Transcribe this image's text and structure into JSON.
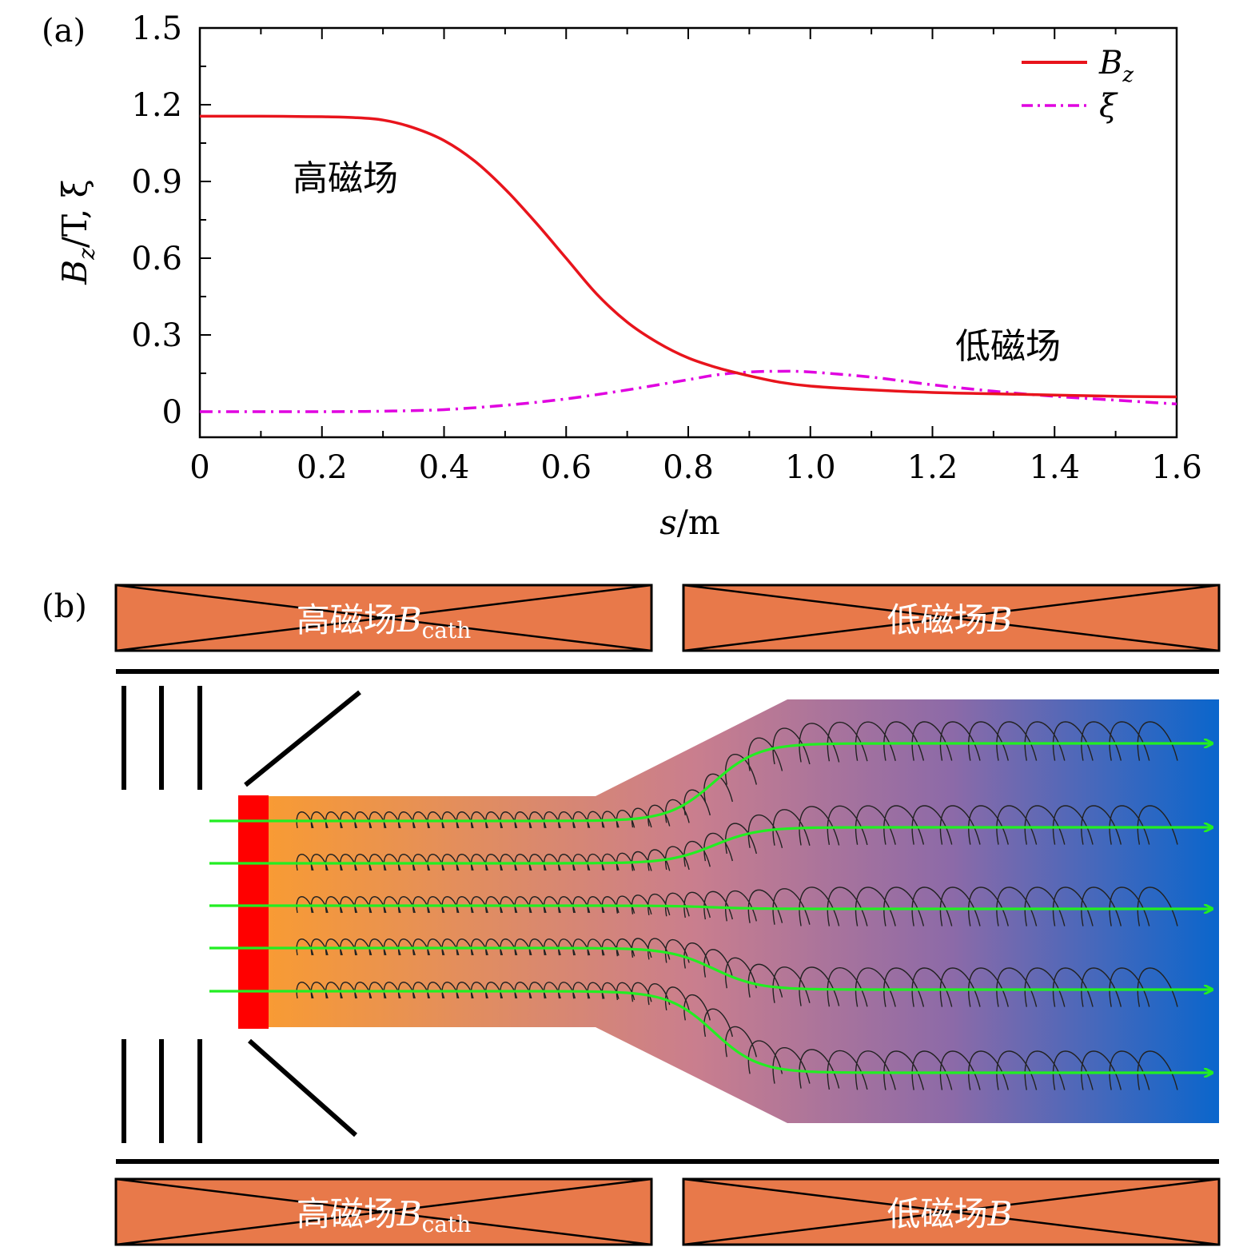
{
  "panel_labels": {
    "a": "(a)",
    "b": "(b)"
  },
  "chart_data": {
    "type": "line",
    "title": "",
    "xlabel": "s/m",
    "ylabel": "B_z/T, ξ",
    "xlim": [
      0,
      1.6
    ],
    "ylim": [
      -0.1,
      1.5
    ],
    "xticks": [
      0,
      0.2,
      0.4,
      0.6,
      0.8,
      1.0,
      1.2,
      1.4,
      1.6
    ],
    "xtick_labels": [
      "0",
      "0.2",
      "0.4",
      "0.6",
      "0.8",
      "1.0",
      "1.2",
      "1.4",
      "1.6"
    ],
    "yticks": [
      0,
      0.3,
      0.6,
      0.9,
      1.2,
      1.5
    ],
    "ytick_labels": [
      "0",
      "0.3",
      "0.6",
      "0.9",
      "1.2",
      "1.5"
    ],
    "legend_position": "top-right",
    "series": [
      {
        "name": "B_z",
        "color": "#e8141c",
        "style": "solid",
        "x": [
          0,
          0.1,
          0.2,
          0.25,
          0.3,
          0.35,
          0.4,
          0.45,
          0.5,
          0.55,
          0.6,
          0.65,
          0.7,
          0.75,
          0.8,
          0.85,
          0.9,
          0.95,
          1.0,
          1.1,
          1.2,
          1.3,
          1.4,
          1.5,
          1.6
        ],
        "values": [
          1.155,
          1.155,
          1.153,
          1.15,
          1.14,
          1.11,
          1.06,
          0.98,
          0.87,
          0.74,
          0.6,
          0.46,
          0.35,
          0.27,
          0.21,
          0.17,
          0.14,
          0.115,
          0.1,
          0.085,
          0.075,
          0.07,
          0.065,
          0.06,
          0.058
        ]
      },
      {
        "name": "ξ",
        "color": "#e000e0",
        "style": "dashdot",
        "x": [
          0,
          0.2,
          0.3,
          0.4,
          0.5,
          0.6,
          0.7,
          0.8,
          0.85,
          0.9,
          0.95,
          1.0,
          1.1,
          1.2,
          1.3,
          1.4,
          1.5,
          1.6
        ],
        "values": [
          0,
          0,
          0.002,
          0.008,
          0.025,
          0.05,
          0.085,
          0.125,
          0.145,
          0.155,
          0.158,
          0.155,
          0.135,
          0.105,
          0.08,
          0.06,
          0.045,
          0.03
        ]
      }
    ],
    "legend": [
      {
        "label": "B_z",
        "base": "B",
        "sub": "z"
      },
      {
        "label": "ξ",
        "base": "ξ",
        "sub": ""
      }
    ],
    "annotations": [
      "高磁场",
      "低磁场"
    ]
  },
  "diagram": {
    "coils_top": [
      {
        "label": "高磁场",
        "symbol": "B",
        "sub": "cath"
      },
      {
        "label": "低磁场",
        "symbol": "B",
        "sub": ""
      }
    ],
    "coils_bottom": [
      {
        "label": "高磁场",
        "symbol": "B",
        "sub": "cath"
      },
      {
        "label": "低磁场",
        "symbol": "B",
        "sub": ""
      }
    ],
    "colors": {
      "coil": "#e8794a",
      "cathode": "#ff0000",
      "beam_start": "#f89b34",
      "beam_mid": "#c97e8e",
      "beam_end": "#0a66cc",
      "field_line": "#22ee22",
      "orbit": "#222222"
    }
  }
}
